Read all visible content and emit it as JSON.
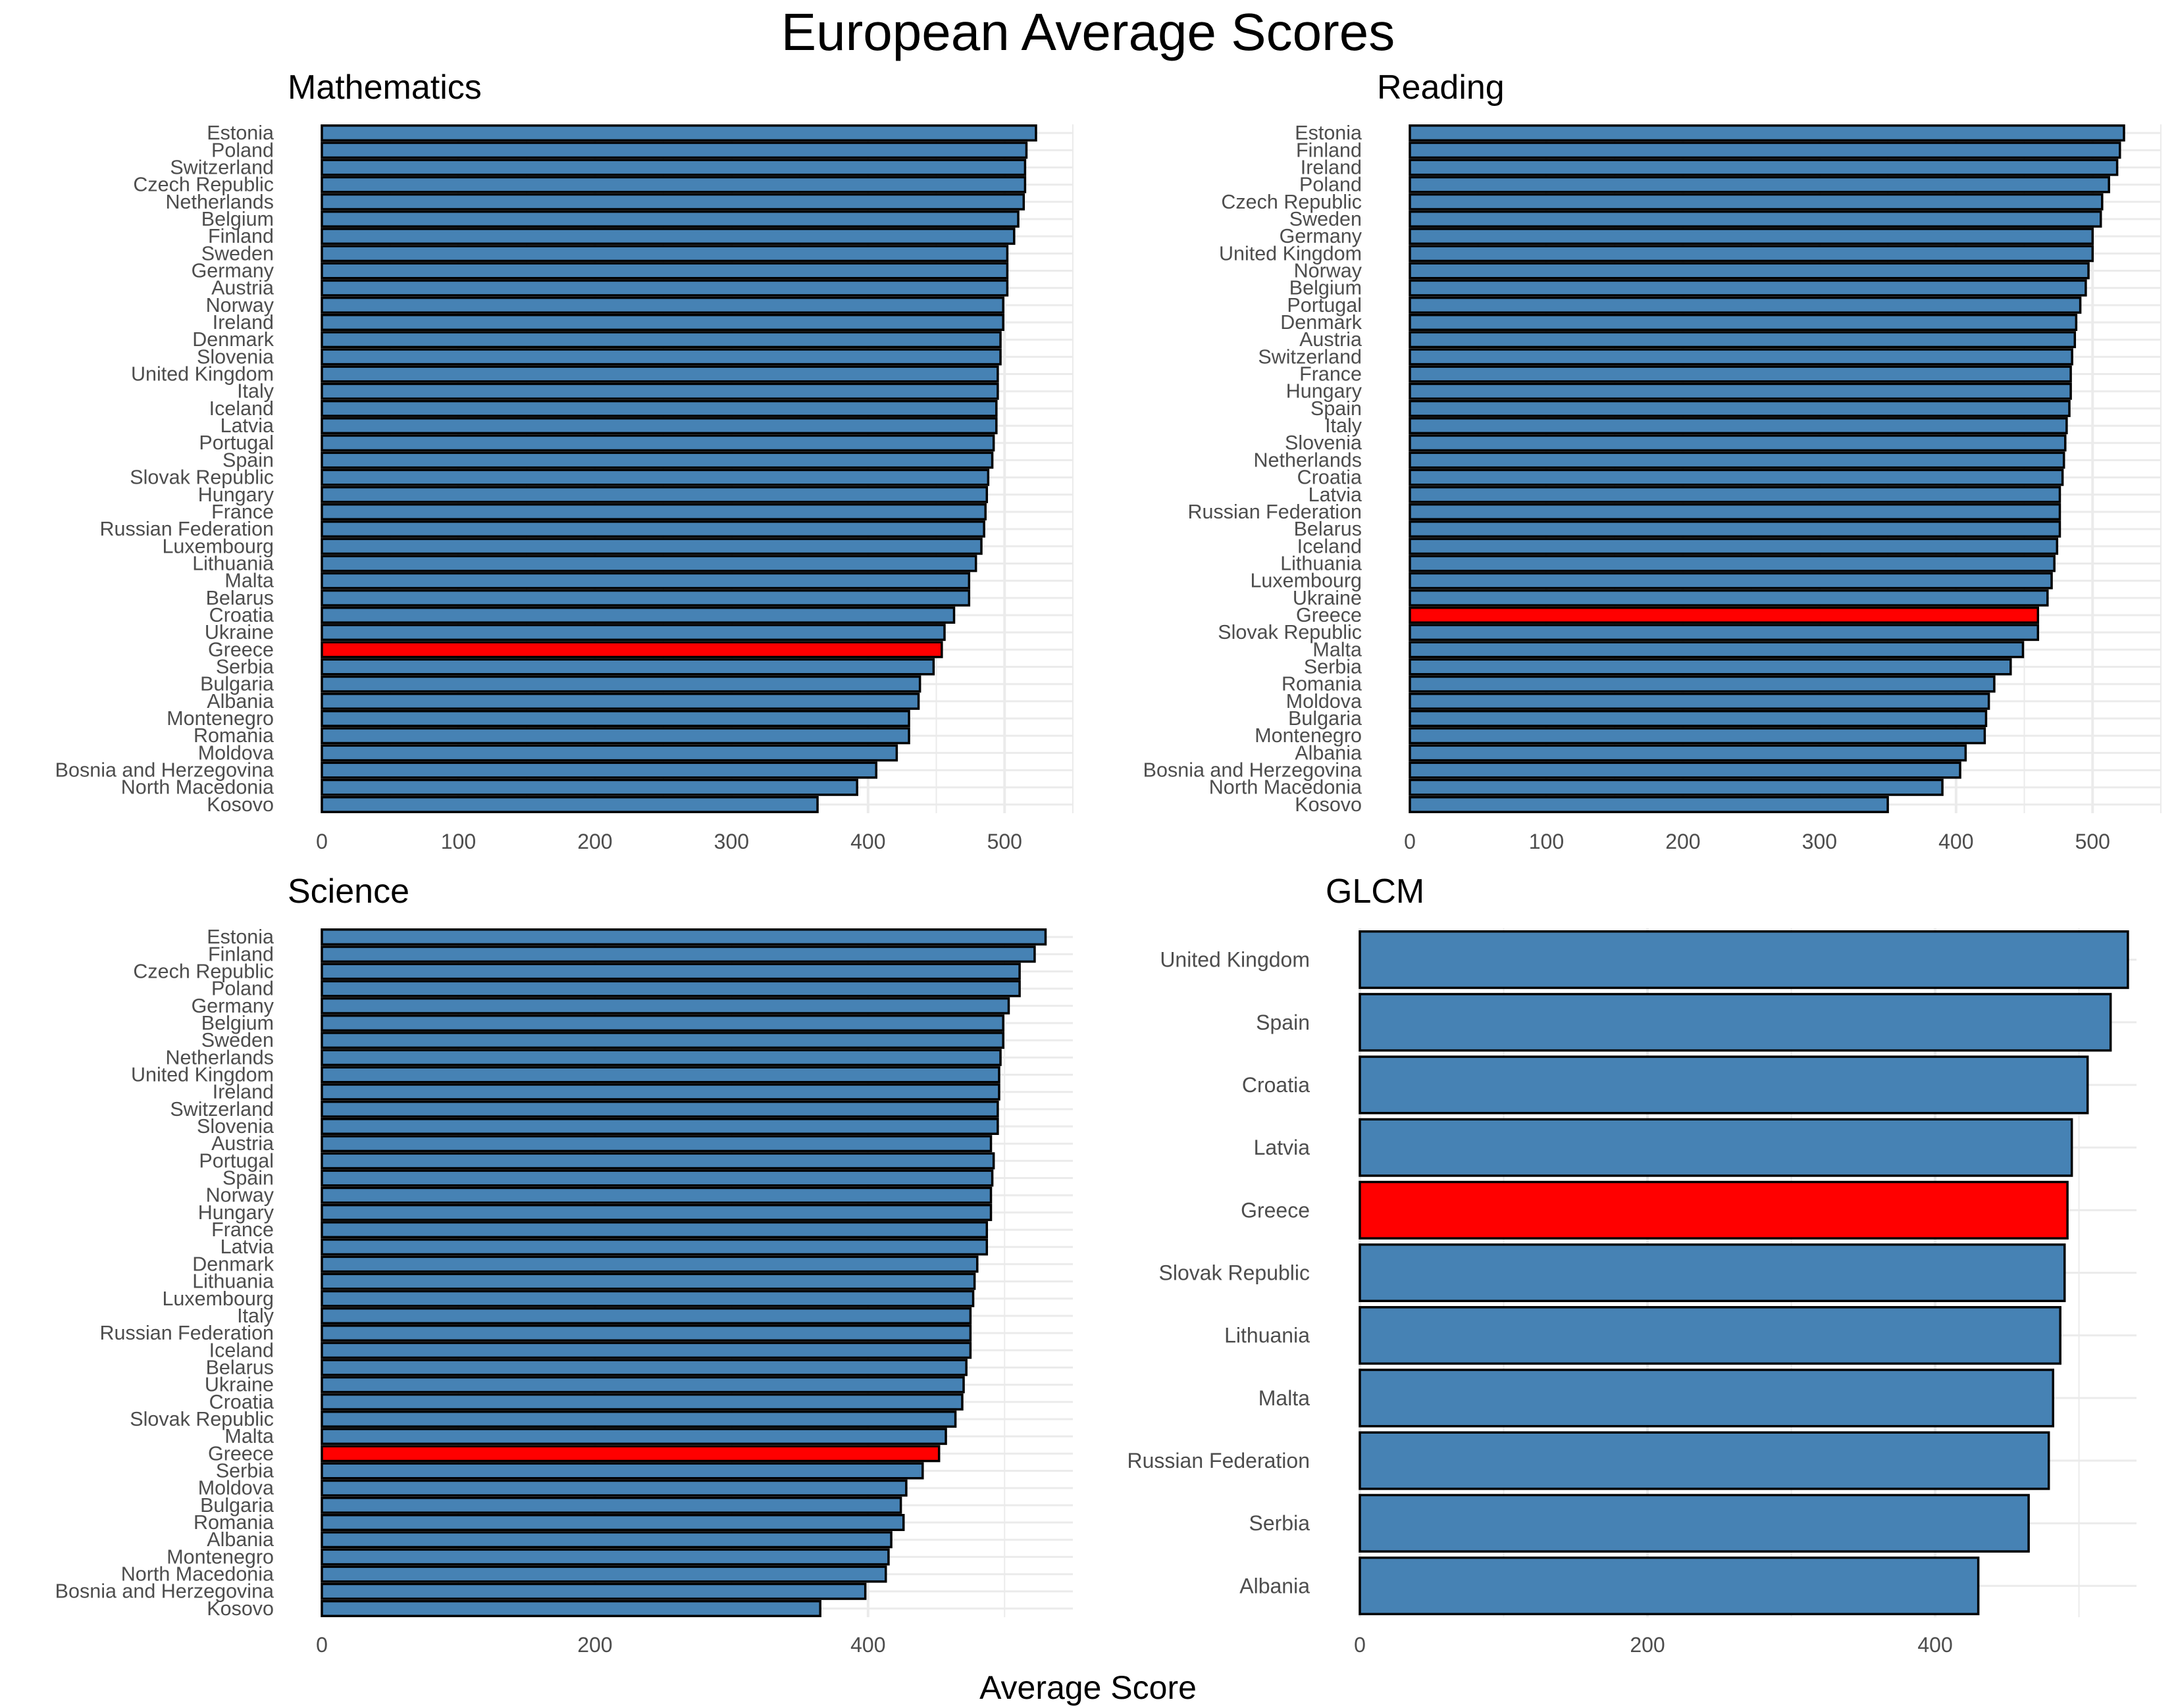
{
  "title": "European Average Scores",
  "x_axis_title": "Average Score",
  "colors": {
    "bar": "#4682b4",
    "highlight": "#ff0000",
    "outline": "#000000",
    "grid": "#ebebeb"
  },
  "highlight_category": "Greece",
  "chart_data": [
    {
      "type": "bar",
      "orientation": "horizontal",
      "title": "Mathematics",
      "xlim": [
        0,
        550
      ],
      "xticks": [
        0,
        100,
        200,
        300,
        400,
        500
      ],
      "grid": true,
      "categories": [
        "Estonia",
        "Poland",
        "Switzerland",
        "Czech Republic",
        "Netherlands",
        "Belgium",
        "Finland",
        "Sweden",
        "Germany",
        "Austria",
        "Norway",
        "Ireland",
        "Denmark",
        "Slovenia",
        "United Kingdom",
        "Italy",
        "Iceland",
        "Latvia",
        "Portugal",
        "Spain",
        "Slovak Republic",
        "Hungary",
        "France",
        "Russian Federation",
        "Luxembourg",
        "Lithuania",
        "Malta",
        "Belarus",
        "Croatia",
        "Ukraine",
        "Greece",
        "Serbia",
        "Bulgaria",
        "Albania",
        "Montenegro",
        "Romania",
        "Moldova",
        "Bosnia and Herzegovina",
        "North Macedonia",
        "Kosovo"
      ],
      "values": [
        523,
        516,
        515,
        515,
        514,
        510,
        507,
        502,
        502,
        502,
        499,
        499,
        497,
        497,
        495,
        495,
        494,
        494,
        492,
        491,
        488,
        487,
        486,
        485,
        483,
        479,
        474,
        474,
        463,
        456,
        454,
        448,
        438,
        437,
        430,
        430,
        421,
        406,
        392,
        363
      ]
    },
    {
      "type": "bar",
      "orientation": "horizontal",
      "title": "Reading",
      "xlim": [
        0,
        550
      ],
      "xticks": [
        0,
        100,
        200,
        300,
        400,
        500
      ],
      "grid": true,
      "categories": [
        "Estonia",
        "Finland",
        "Ireland",
        "Poland",
        "Czech Republic",
        "Sweden",
        "Germany",
        "United Kingdom",
        "Norway",
        "Belgium",
        "Portugal",
        "Denmark",
        "Austria",
        "Switzerland",
        "France",
        "Hungary",
        "Spain",
        "Italy",
        "Slovenia",
        "Netherlands",
        "Croatia",
        "Latvia",
        "Russian Federation",
        "Belarus",
        "Iceland",
        "Lithuania",
        "Luxembourg",
        "Ukraine",
        "Greece",
        "Slovak Republic",
        "Malta",
        "Serbia",
        "Romania",
        "Moldova",
        "Bulgaria",
        "Montenegro",
        "Albania",
        "Bosnia and Herzegovina",
        "North Macedonia",
        "Kosovo"
      ],
      "values": [
        523,
        520,
        518,
        512,
        507,
        506,
        500,
        500,
        497,
        495,
        491,
        488,
        487,
        485,
        484,
        484,
        483,
        481,
        480,
        479,
        478,
        476,
        476,
        476,
        474,
        472,
        470,
        467,
        460,
        460,
        449,
        440,
        428,
        424,
        422,
        421,
        407,
        403,
        390,
        350
      ]
    },
    {
      "type": "bar",
      "orientation": "horizontal",
      "title": "Science",
      "xlim": [
        0,
        550
      ],
      "xticks": [
        0,
        200,
        400
      ],
      "grid": true,
      "categories": [
        "Estonia",
        "Finland",
        "Czech Republic",
        "Poland",
        "Germany",
        "Belgium",
        "Sweden",
        "Netherlands",
        "United Kingdom",
        "Ireland",
        "Switzerland",
        "Slovenia",
        "Austria",
        "Portugal",
        "Spain",
        "Norway",
        "Hungary",
        "France",
        "Latvia",
        "Denmark",
        "Lithuania",
        "Luxembourg",
        "Italy",
        "Russian Federation",
        "Iceland",
        "Belarus",
        "Ukraine",
        "Croatia",
        "Slovak Republic",
        "Malta",
        "Greece",
        "Serbia",
        "Moldova",
        "Bulgaria",
        "Romania",
        "Albania",
        "Montenegro",
        "North Macedonia",
        "Bosnia and Herzegovina",
        "Kosovo"
      ],
      "values": [
        530,
        522,
        511,
        511,
        503,
        499,
        499,
        497,
        496,
        496,
        495,
        495,
        490,
        492,
        491,
        490,
        490,
        487,
        487,
        480,
        478,
        477,
        475,
        475,
        475,
        472,
        470,
        469,
        464,
        457,
        452,
        440,
        428,
        424,
        426,
        417,
        415,
        413,
        398,
        365
      ]
    },
    {
      "type": "bar",
      "orientation": "horizontal",
      "title": "GLCM",
      "xlim": [
        0,
        540
      ],
      "xticks": [
        0,
        200,
        400
      ],
      "grid": true,
      "categories": [
        "United Kingdom",
        "Spain",
        "Croatia",
        "Latvia",
        "Greece",
        "Slovak Republic",
        "Lithuania",
        "Malta",
        "Russian Federation",
        "Serbia",
        "Albania"
      ],
      "values": [
        534,
        522,
        506,
        495,
        492,
        490,
        487,
        482,
        479,
        465,
        430
      ]
    }
  ]
}
